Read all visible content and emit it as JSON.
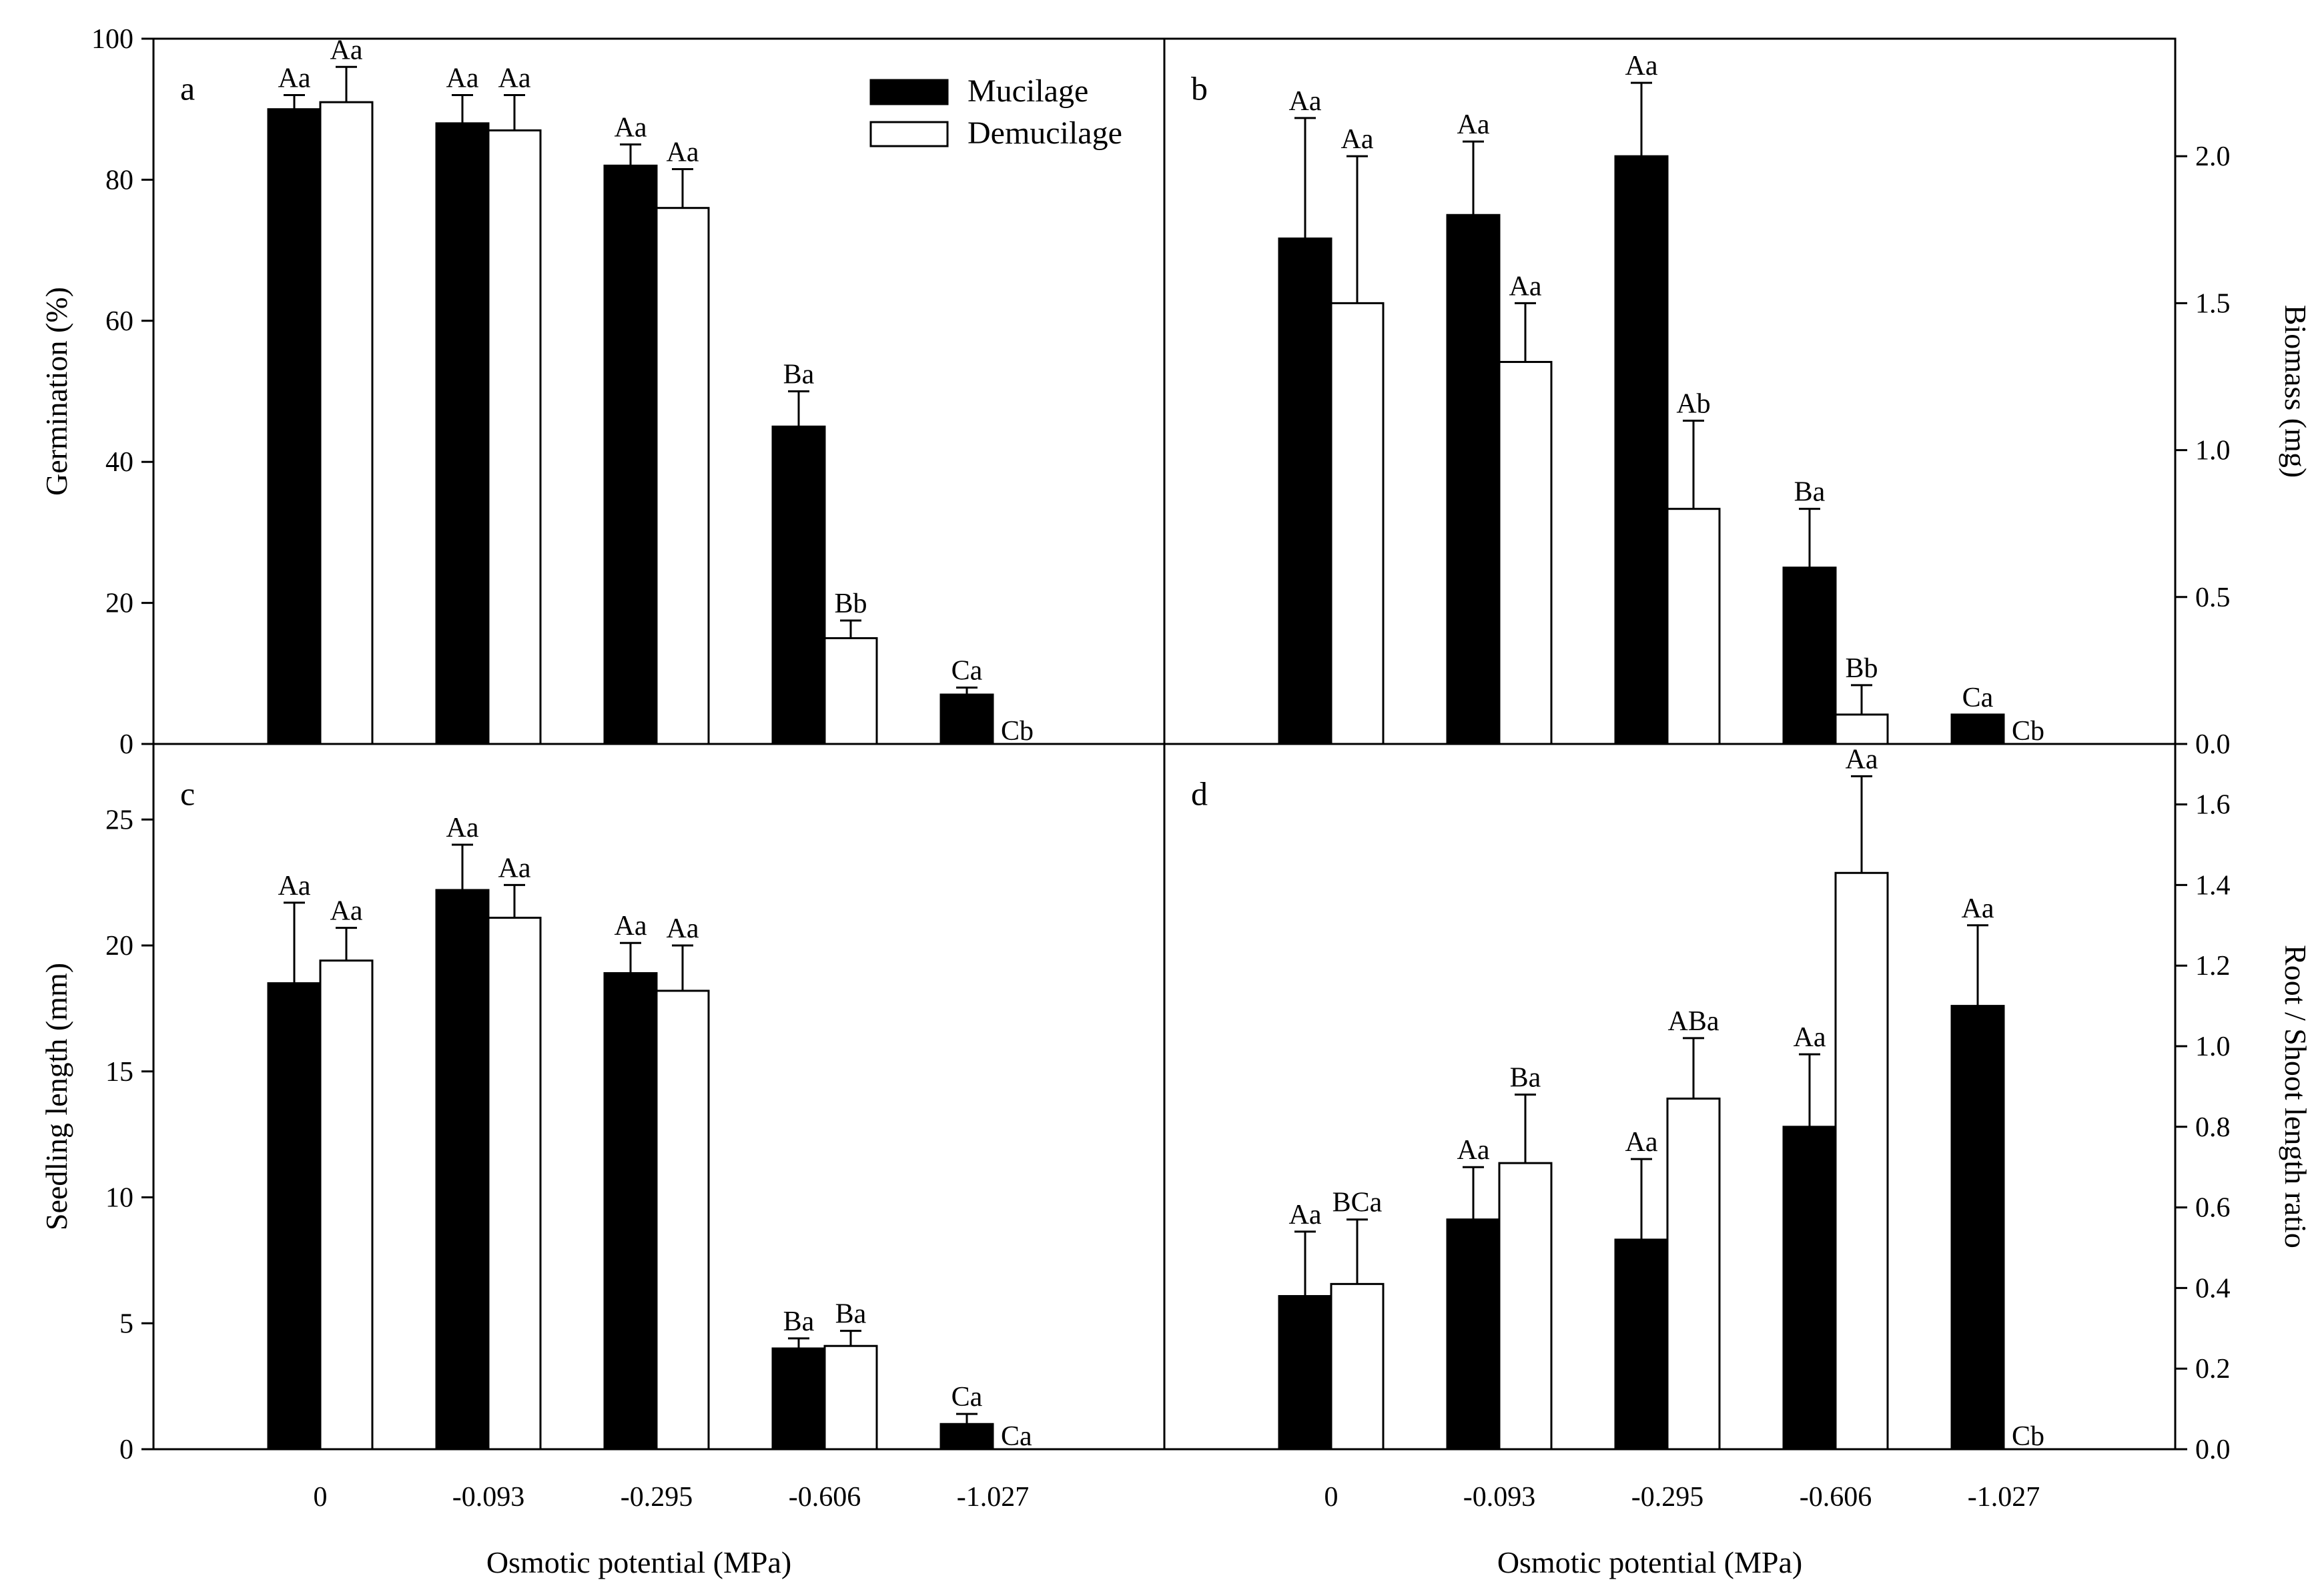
{
  "legend": [
    {
      "name": "Mucilage",
      "fill": "#000000"
    },
    {
      "name": "Demucilage",
      "fill": "#ffffff"
    }
  ],
  "chart_data": [
    {
      "type": "bar",
      "panel": "a",
      "categories": [
        "0",
        "-0.093",
        "-0.295",
        "-0.606",
        "-1.027"
      ],
      "xlabel": "",
      "ylabel": "Germination (%)",
      "ylim": [
        0,
        100
      ],
      "yticks": [
        0,
        20,
        40,
        60,
        80,
        100
      ],
      "ytick_labels": [
        "0",
        "20",
        "40",
        "60",
        "80",
        "100"
      ],
      "y_axis_side": "left",
      "series": [
        {
          "name": "Mucilage",
          "values": [
            90,
            88,
            82,
            45,
            7
          ],
          "errors": [
            2,
            4,
            3,
            5,
            1
          ],
          "labels": [
            "Aa",
            "Aa",
            "Aa",
            "Ba",
            "Ca"
          ]
        },
        {
          "name": "Demucilage",
          "values": [
            91,
            87,
            76,
            15,
            0
          ],
          "errors": [
            5,
            5,
            5.5,
            2.5,
            0
          ],
          "labels": [
            "Aa",
            "Aa",
            "Aa",
            "Bb",
            "Cb"
          ]
        }
      ]
    },
    {
      "type": "bar",
      "panel": "b",
      "categories": [
        "0",
        "-0.093",
        "-0.295",
        "-0.606",
        "-1.027"
      ],
      "xlabel": "",
      "ylabel": "Biomass (mg)",
      "ylim": [
        0,
        2.4
      ],
      "yticks": [
        0,
        0.5,
        1.0,
        1.5,
        2.0
      ],
      "ytick_labels": [
        "0.0",
        "0.5",
        "1.0",
        "1.5",
        "2.0"
      ],
      "y_axis_side": "right",
      "series": [
        {
          "name": "Mucilage",
          "values": [
            1.72,
            1.8,
            2.0,
            0.6,
            0.1
          ],
          "errors": [
            0.41,
            0.25,
            0.25,
            0.2,
            0
          ],
          "labels": [
            "Aa",
            "Aa",
            "Aa",
            "Ba",
            "Ca"
          ]
        },
        {
          "name": "Demucilage",
          "values": [
            1.5,
            1.3,
            0.8,
            0.1,
            0
          ],
          "errors": [
            0.5,
            0.2,
            0.3,
            0.1,
            0
          ],
          "labels": [
            "Aa",
            "Aa",
            "Ab",
            "Bb",
            "Cb"
          ]
        }
      ]
    },
    {
      "type": "bar",
      "panel": "c",
      "categories": [
        "0",
        "-0.093",
        "-0.295",
        "-0.606",
        "-1.027"
      ],
      "xlabel": "Osmotic potential  (MPa)",
      "ylabel": "Seedling length (mm)",
      "ylim": [
        0,
        28
      ],
      "yticks": [
        0,
        5,
        10,
        15,
        20,
        25
      ],
      "ytick_labels": [
        "0",
        "5",
        "10",
        "15",
        "20",
        "25"
      ],
      "y_axis_side": "left",
      "series": [
        {
          "name": "Mucilage",
          "values": [
            18.5,
            22.2,
            18.9,
            4.0,
            1.0
          ],
          "errors": [
            3.2,
            1.8,
            1.2,
            0.4,
            0.4
          ],
          "labels": [
            "Aa",
            "Aa",
            "Aa",
            "Ba",
            "Ca"
          ]
        },
        {
          "name": "Demucilage",
          "values": [
            19.4,
            21.1,
            18.2,
            4.1,
            0
          ],
          "errors": [
            1.3,
            1.3,
            1.8,
            0.6,
            0
          ],
          "labels": [
            "Aa",
            "Aa",
            "Aa",
            "Ba",
            "Ca"
          ]
        }
      ]
    },
    {
      "type": "bar",
      "panel": "d",
      "categories": [
        "0",
        "-0.093",
        "-0.295",
        "-0.606",
        "-1.027"
      ],
      "xlabel": "Osmotic potential  (MPa)",
      "ylabel": "Root / Shoot length ratio",
      "ylim": [
        0,
        1.75
      ],
      "yticks": [
        0,
        0.2,
        0.4,
        0.6,
        0.8,
        1.0,
        1.2,
        1.4,
        1.6
      ],
      "ytick_labels": [
        "0.0",
        "0.2",
        "0.4",
        "0.6",
        "0.8",
        "1.0",
        "1.2",
        "1.4",
        "1.6"
      ],
      "y_axis_side": "right",
      "series": [
        {
          "name": "Mucilage",
          "values": [
            0.38,
            0.57,
            0.52,
            0.8,
            1.1
          ],
          "errors": [
            0.16,
            0.13,
            0.2,
            0.18,
            0.2
          ],
          "labels": [
            "Aa",
            "Aa",
            "Aa",
            "Aa",
            "Aa"
          ]
        },
        {
          "name": "Demucilage",
          "values": [
            0.41,
            0.71,
            0.87,
            1.43,
            0
          ],
          "errors": [
            0.16,
            0.17,
            0.15,
            0.24,
            0
          ],
          "labels": [
            "BCa",
            "Ba",
            "ABa",
            "Aa",
            "Cb"
          ]
        }
      ]
    }
  ]
}
